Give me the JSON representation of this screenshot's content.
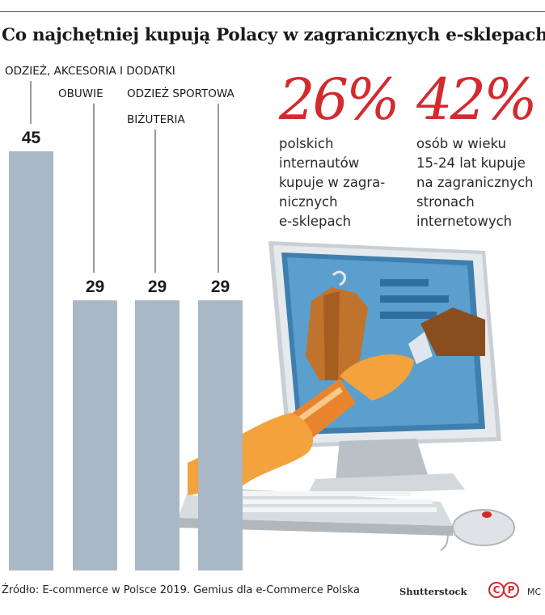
{
  "title": "Co najchętniej kupują Polacy w zagranicznych e-sklepach",
  "colors": {
    "bar": "#a9b8c6",
    "accent": "#d32a2e",
    "text": "#1a1a1a"
  },
  "chart_data": {
    "type": "bar",
    "title": "Co najchętniej kupują Polacy w zagranicznych e-sklepach",
    "categories": [
      "ODZIEŻ, AKCESORIA I DODATKI",
      "OBUWIE",
      "BIŻUTERIA",
      "ODZIEŻ SPORTOWA"
    ],
    "values": [
      45,
      29,
      29,
      29
    ],
    "value_labels": [
      "45",
      "29",
      "29",
      "29"
    ],
    "ylim": [
      0,
      45
    ],
    "grid": false,
    "legend": "none"
  },
  "stats": [
    {
      "value": "26%",
      "description_lines": [
        "polskich",
        "internautów",
        "kupuje w zagra-",
        "nicznych",
        "e-sklepach"
      ]
    },
    {
      "value": "42%",
      "description_lines": [
        "osób w wieku",
        "15-24 lat kupuje",
        "na zagranicznych",
        "stronach",
        "internetowych"
      ]
    }
  ],
  "footer": {
    "source": "Źródło: E-commerce w Polsce 2019. Gemius dla e-Commerce Polska",
    "image_credit": "Shutterstock",
    "copyright": [
      "C",
      "P"
    ],
    "author": "MC"
  }
}
